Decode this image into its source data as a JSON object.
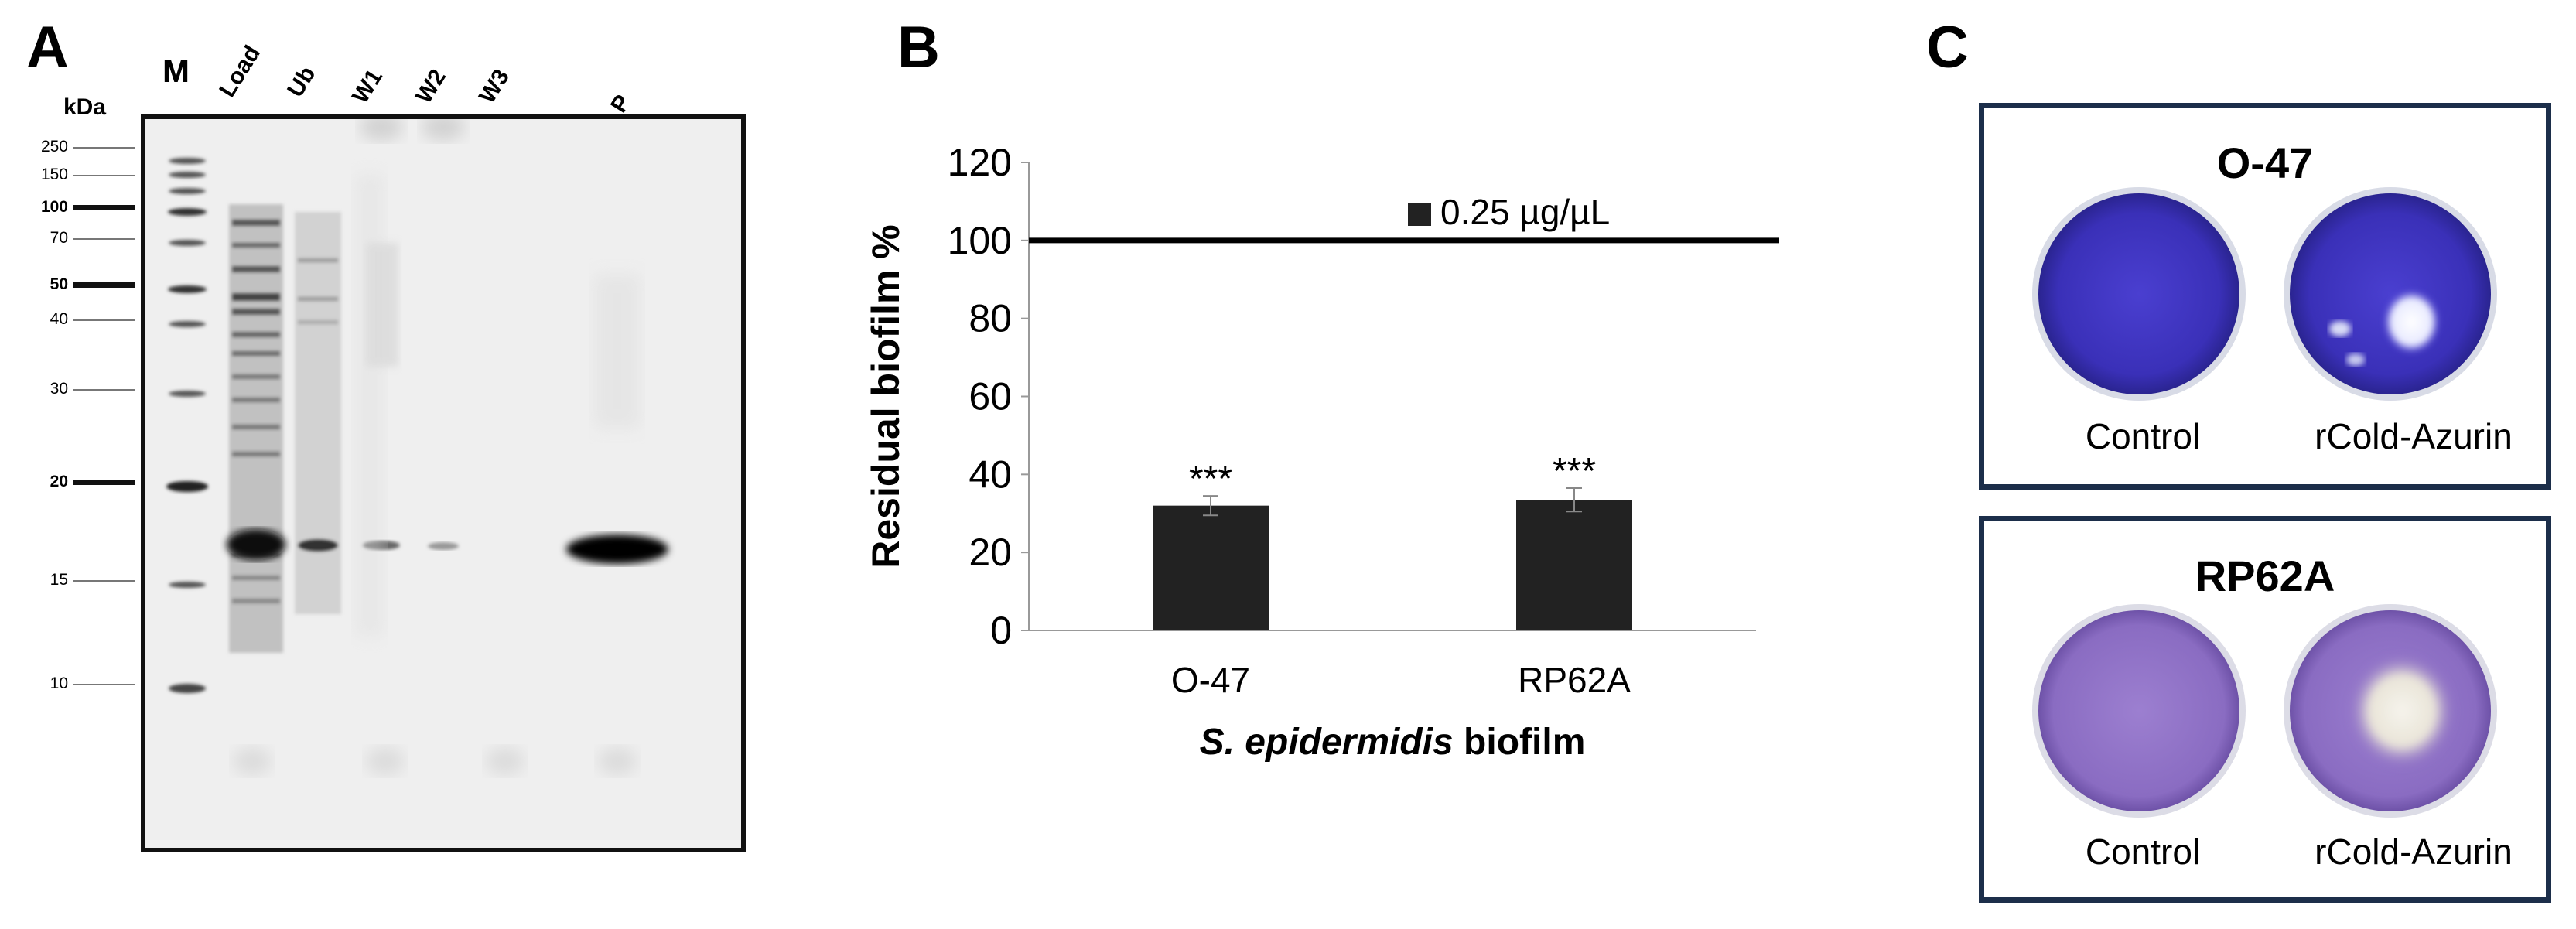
{
  "panels": {
    "a": "A",
    "b": "B",
    "c": "C"
  },
  "gel": {
    "unit_label": "kDa",
    "lanes": [
      "M",
      "Load",
      "Ub",
      "W1",
      "W2",
      "W3",
      "P"
    ],
    "markers": [
      {
        "label": "250",
        "bold": false
      },
      {
        "label": "150",
        "bold": false
      },
      {
        "label": "100",
        "bold": true
      },
      {
        "label": "70",
        "bold": false
      },
      {
        "label": "50",
        "bold": true
      },
      {
        "label": "40",
        "bold": false
      },
      {
        "label": "30",
        "bold": false
      },
      {
        "label": "20",
        "bold": true
      },
      {
        "label": "15",
        "bold": false
      },
      {
        "label": "10",
        "bold": false
      }
    ]
  },
  "chart_data": {
    "type": "bar",
    "categories": [
      "O-47",
      "RP62A"
    ],
    "series": [
      {
        "name": "0.25 µg/µL",
        "values": [
          32,
          33.5
        ],
        "errors": [
          2.5,
          3
        ],
        "annotations": [
          "***",
          "***"
        ],
        "color": "#222222"
      }
    ],
    "reference_line": {
      "y": 100
    },
    "xlabel_italic": "S. epidermidis",
    "xlabel_rest": " biofilm",
    "ylabel": "Residual biofilm %",
    "ylim": [
      0,
      120
    ],
    "yticks": [
      "0",
      "20",
      "40",
      "60",
      "80",
      "100",
      "120"
    ],
    "legend_position": "top-right",
    "grid": false
  },
  "plates": [
    {
      "title": "O-47",
      "captions": [
        "Control",
        "rCold-Azurin"
      ]
    },
    {
      "title": "RP62A",
      "captions": [
        "Control",
        "rCold-Azurin"
      ]
    }
  ]
}
